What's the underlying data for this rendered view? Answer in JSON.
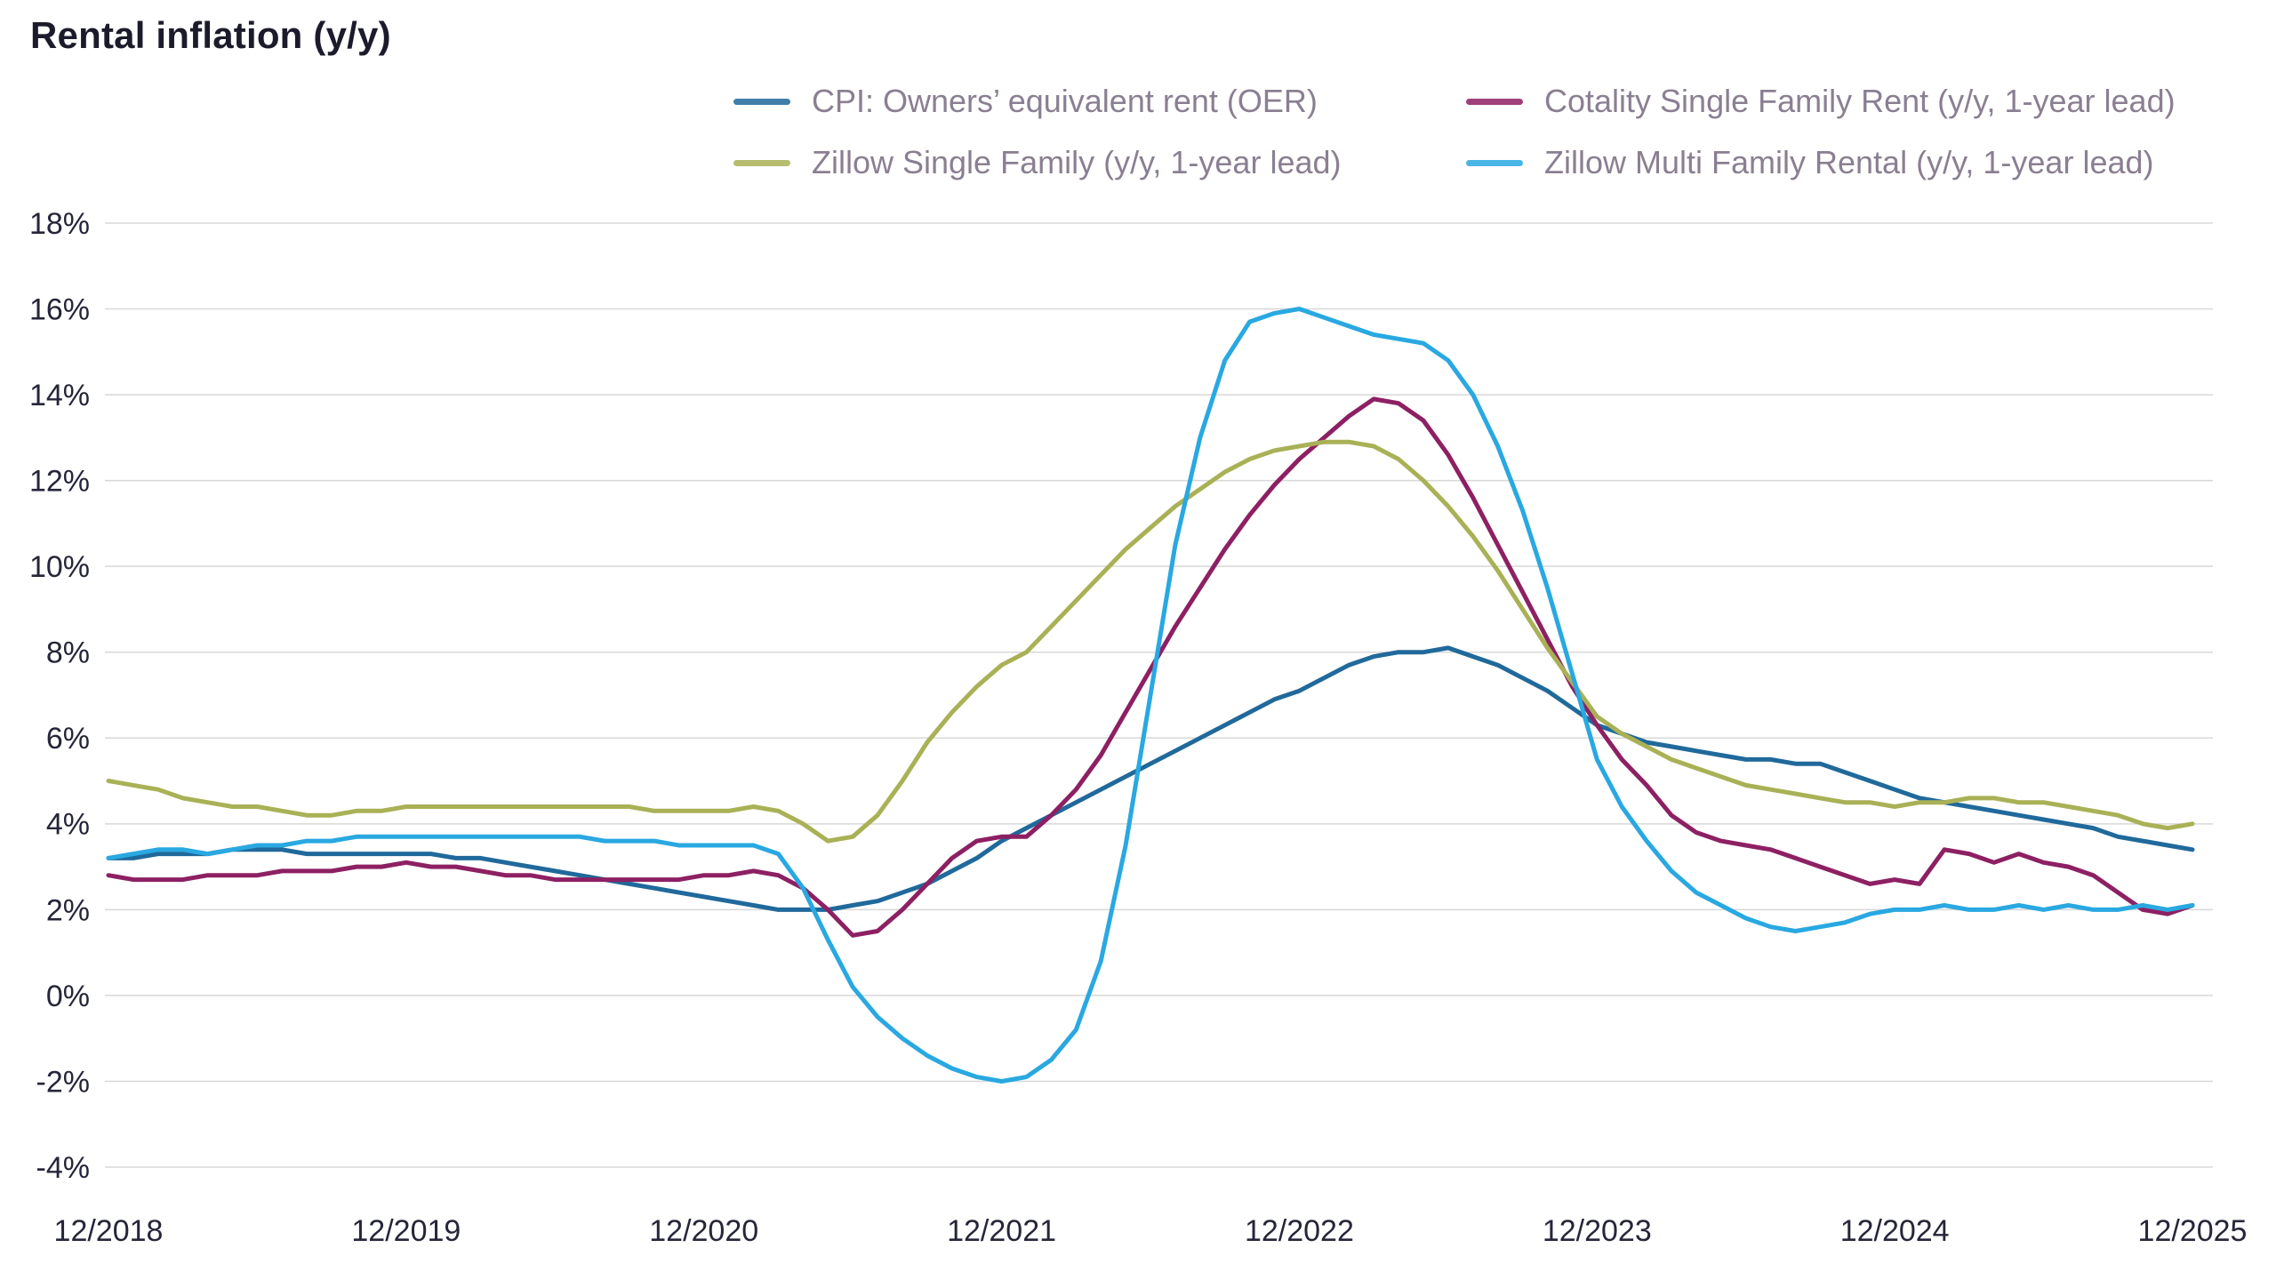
{
  "chart_data": {
    "type": "line",
    "title": "Rental inflation (y/y)",
    "xlabel": "",
    "ylabel": "",
    "ylim": [
      -4,
      18
    ],
    "grid": "horizontal-only",
    "legend_position": "top",
    "x_unit": "monthly, Dec 2018 through Dec 2025",
    "x_tick_labels": [
      "12/2018",
      "12/2019",
      "12/2020",
      "12/2021",
      "12/2022",
      "12/2023",
      "12/2024",
      "12/2025"
    ],
    "x_tick_month_indices": [
      0,
      12,
      24,
      36,
      48,
      60,
      72,
      84
    ],
    "y_tick_values": [
      18,
      16,
      14,
      12,
      10,
      8,
      6,
      4,
      2,
      0,
      -2,
      -4
    ],
    "y_tick_labels": [
      "18%",
      "16%",
      "14%",
      "12%",
      "10%",
      "8%",
      "6%",
      "4%",
      "2%",
      "0%",
      "-2%",
      "-4%"
    ],
    "series": [
      {
        "name": "CPI: Owners’ equivalent rent (OER)",
        "slug": "oer",
        "color": "#20699b",
        "values": [
          3.2,
          3.2,
          3.3,
          3.3,
          3.3,
          3.4,
          3.4,
          3.4,
          3.3,
          3.3,
          3.3,
          3.3,
          3.3,
          3.3,
          3.2,
          3.2,
          3.1,
          3.0,
          2.9,
          2.8,
          2.7,
          2.6,
          2.5,
          2.4,
          2.3,
          2.2,
          2.1,
          2.0,
          2.0,
          2.0,
          2.1,
          2.2,
          2.4,
          2.6,
          2.9,
          3.2,
          3.6,
          3.9,
          4.2,
          4.5,
          4.8,
          5.1,
          5.4,
          5.7,
          6.0,
          6.3,
          6.6,
          6.9,
          7.1,
          7.4,
          7.7,
          7.9,
          8.0,
          8.0,
          8.1,
          7.9,
          7.7,
          7.4,
          7.1,
          6.7,
          6.3,
          6.1,
          5.9,
          5.8,
          5.7,
          5.6,
          5.5,
          5.5,
          5.4,
          5.4,
          5.2,
          5.0,
          4.8,
          4.6,
          4.5,
          4.4,
          4.3,
          4.2,
          4.1,
          4.0,
          3.9,
          3.7,
          3.6,
          3.5,
          3.4
        ]
      },
      {
        "name": "Cotality Single Family Rent (y/y, 1-year lead)",
        "slug": "cotality-sfr",
        "color": "#8d2063",
        "values": [
          2.8,
          2.7,
          2.7,
          2.7,
          2.8,
          2.8,
          2.8,
          2.9,
          2.9,
          2.9,
          3.0,
          3.0,
          3.1,
          3.0,
          3.0,
          2.9,
          2.8,
          2.8,
          2.7,
          2.7,
          2.7,
          2.7,
          2.7,
          2.7,
          2.8,
          2.8,
          2.9,
          2.8,
          2.5,
          2.0,
          1.4,
          1.5,
          2.0,
          2.6,
          3.2,
          3.6,
          3.7,
          3.7,
          4.2,
          4.8,
          5.6,
          6.6,
          7.6,
          8.6,
          9.5,
          10.4,
          11.2,
          11.9,
          12.5,
          13.0,
          13.5,
          13.9,
          13.8,
          13.4,
          12.6,
          11.6,
          10.5,
          9.4,
          8.3,
          7.2,
          6.3,
          5.5,
          4.9,
          4.2,
          3.8,
          3.6,
          3.5,
          3.4,
          3.2,
          3.0,
          2.8,
          2.6,
          2.7,
          2.6,
          3.4,
          3.3,
          3.1,
          3.3,
          3.1,
          3.0,
          2.8,
          2.4,
          2.0,
          1.9,
          2.1
        ]
      },
      {
        "name": "Zillow Single Family (y/y, 1-year lead)",
        "slug": "zillow-sf",
        "color": "#a9b156",
        "values": [
          5.0,
          4.9,
          4.8,
          4.6,
          4.5,
          4.4,
          4.4,
          4.3,
          4.2,
          4.2,
          4.3,
          4.3,
          4.4,
          4.4,
          4.4,
          4.4,
          4.4,
          4.4,
          4.4,
          4.4,
          4.4,
          4.4,
          4.3,
          4.3,
          4.3,
          4.3,
          4.4,
          4.3,
          4.0,
          3.6,
          3.7,
          4.2,
          5.0,
          5.9,
          6.6,
          7.2,
          7.7,
          8.0,
          8.6,
          9.2,
          9.8,
          10.4,
          10.9,
          11.4,
          11.8,
          12.2,
          12.5,
          12.7,
          12.8,
          12.9,
          12.9,
          12.8,
          12.5,
          12.0,
          11.4,
          10.7,
          9.9,
          9.0,
          8.1,
          7.3,
          6.5,
          6.1,
          5.8,
          5.5,
          5.3,
          5.1,
          4.9,
          4.8,
          4.7,
          4.6,
          4.5,
          4.5,
          4.4,
          4.5,
          4.5,
          4.6,
          4.6,
          4.5,
          4.5,
          4.4,
          4.3,
          4.2,
          4.0,
          3.9,
          4.0
        ]
      },
      {
        "name": "Zillow Multi Family Rental (y/y, 1-year lead)",
        "slug": "zillow-mf",
        "color": "#29a8e1",
        "values": [
          3.2,
          3.3,
          3.4,
          3.4,
          3.3,
          3.4,
          3.5,
          3.5,
          3.6,
          3.6,
          3.7,
          3.7,
          3.7,
          3.7,
          3.7,
          3.7,
          3.7,
          3.7,
          3.7,
          3.7,
          3.6,
          3.6,
          3.6,
          3.5,
          3.5,
          3.5,
          3.5,
          3.3,
          2.5,
          1.3,
          0.2,
          -0.5,
          -1.0,
          -1.4,
          -1.7,
          -1.9,
          -2.0,
          -1.9,
          -1.5,
          -0.8,
          0.8,
          3.5,
          7.0,
          10.5,
          13.0,
          14.8,
          15.7,
          15.9,
          16.0,
          15.8,
          15.6,
          15.4,
          15.3,
          15.2,
          14.8,
          14.0,
          12.8,
          11.3,
          9.5,
          7.5,
          5.5,
          4.4,
          3.6,
          2.9,
          2.4,
          2.1,
          1.8,
          1.6,
          1.5,
          1.6,
          1.7,
          1.9,
          2.0,
          2.0,
          2.1,
          2.0,
          2.0,
          2.1,
          2.0,
          2.1,
          2.0,
          2.0,
          2.1,
          2.0,
          2.1
        ]
      }
    ]
  }
}
